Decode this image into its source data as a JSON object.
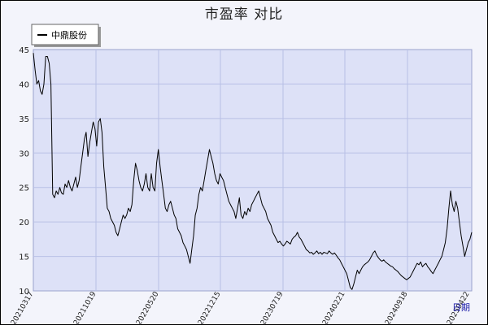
{
  "chart_data": {
    "type": "line",
    "title": "市盈率  对比",
    "xlabel": "日期",
    "ylabel": "",
    "ylim": [
      10,
      45
    ],
    "yticks": [
      10,
      15,
      20,
      25,
      30,
      35,
      40,
      45
    ],
    "x_tick_labels": [
      "20210317",
      "20211019",
      "20220520",
      "20221215",
      "20230719",
      "20240221",
      "20240918",
      "20250422"
    ],
    "grid": true,
    "legend_position": "top-left",
    "colors": {
      "series": "#000000",
      "plot_bg": "#dde1f7",
      "grid": "#b8c0e6",
      "frame_bg": "#f3f4fb"
    },
    "series": [
      {
        "name": "中鼎股份",
        "values": [
          44.5,
          42,
          40,
          40.5,
          39,
          38.5,
          40,
          44,
          44,
          43,
          40,
          24,
          23.5,
          24.5,
          24,
          25,
          24.2,
          24,
          25.5,
          25,
          26,
          25,
          24.5,
          25.5,
          26.5,
          25,
          26,
          28,
          30,
          32,
          33,
          29.5,
          31.5,
          33,
          34.5,
          33.5,
          31,
          34.5,
          35,
          33,
          28,
          25,
          22,
          21.5,
          20.5,
          20,
          19.5,
          18.5,
          18,
          19,
          20,
          21,
          20.5,
          21,
          22,
          21.5,
          22.5,
          26,
          28.5,
          27.5,
          26,
          25,
          24.5,
          25.5,
          27,
          25,
          24.5,
          27,
          25,
          24.5,
          28.5,
          30.5,
          28,
          26,
          24,
          22,
          21.5,
          22.5,
          23,
          22,
          21,
          20.5,
          19,
          18.5,
          18,
          17,
          16.5,
          16,
          15,
          14,
          16,
          18,
          21,
          22,
          24,
          25,
          24.5,
          26,
          27.5,
          29,
          30.5,
          29.5,
          28.5,
          27,
          26,
          25.5,
          27,
          26.5,
          26,
          25,
          24,
          23,
          22.5,
          22,
          21.5,
          20.5,
          22,
          23.5,
          21,
          20.5,
          21.5,
          21,
          22,
          21.5,
          22.5,
          23,
          23.5,
          24,
          24.5,
          23.5,
          22.5,
          22,
          21.5,
          20.5,
          20,
          19.5,
          18.5,
          18,
          17.5,
          17,
          17.2,
          16.8,
          16.5,
          16.8,
          17.2,
          17,
          16.8,
          17.5,
          17.8,
          18,
          18.5,
          17.8,
          17.5,
          17,
          16.5,
          16,
          15.8,
          15.5,
          15.6,
          15.3,
          15.5,
          15.8,
          15.4,
          15.6,
          15.3,
          15.6,
          15.5,
          15.4,
          15.8,
          15.5,
          15.3,
          15.5,
          15.2,
          14.8,
          14.5,
          14,
          13.5,
          13,
          12.5,
          11.5,
          10.5,
          10.2,
          11,
          12,
          13,
          12.5,
          13,
          13.5,
          13.8,
          14,
          14.2,
          14.5,
          15,
          15.5,
          15.8,
          15.2,
          14.8,
          14.5,
          14.3,
          14.5,
          14.2,
          14,
          13.8,
          13.6,
          13.5,
          13.2,
          13,
          12.8,
          12.5,
          12.2,
          12,
          11.8,
          11.6,
          11.8,
          12,
          12.5,
          13,
          13.5,
          14,
          13.8,
          14.2,
          13.5,
          13.8,
          14,
          13.5,
          13.2,
          12.8,
          12.5,
          13,
          13.5,
          14,
          14.5,
          15,
          16,
          17,
          19,
          22,
          24.5,
          22.5,
          21.5,
          23,
          22,
          20,
          18,
          16.5,
          15,
          16,
          17,
          17.5,
          18.5
        ]
      }
    ]
  }
}
